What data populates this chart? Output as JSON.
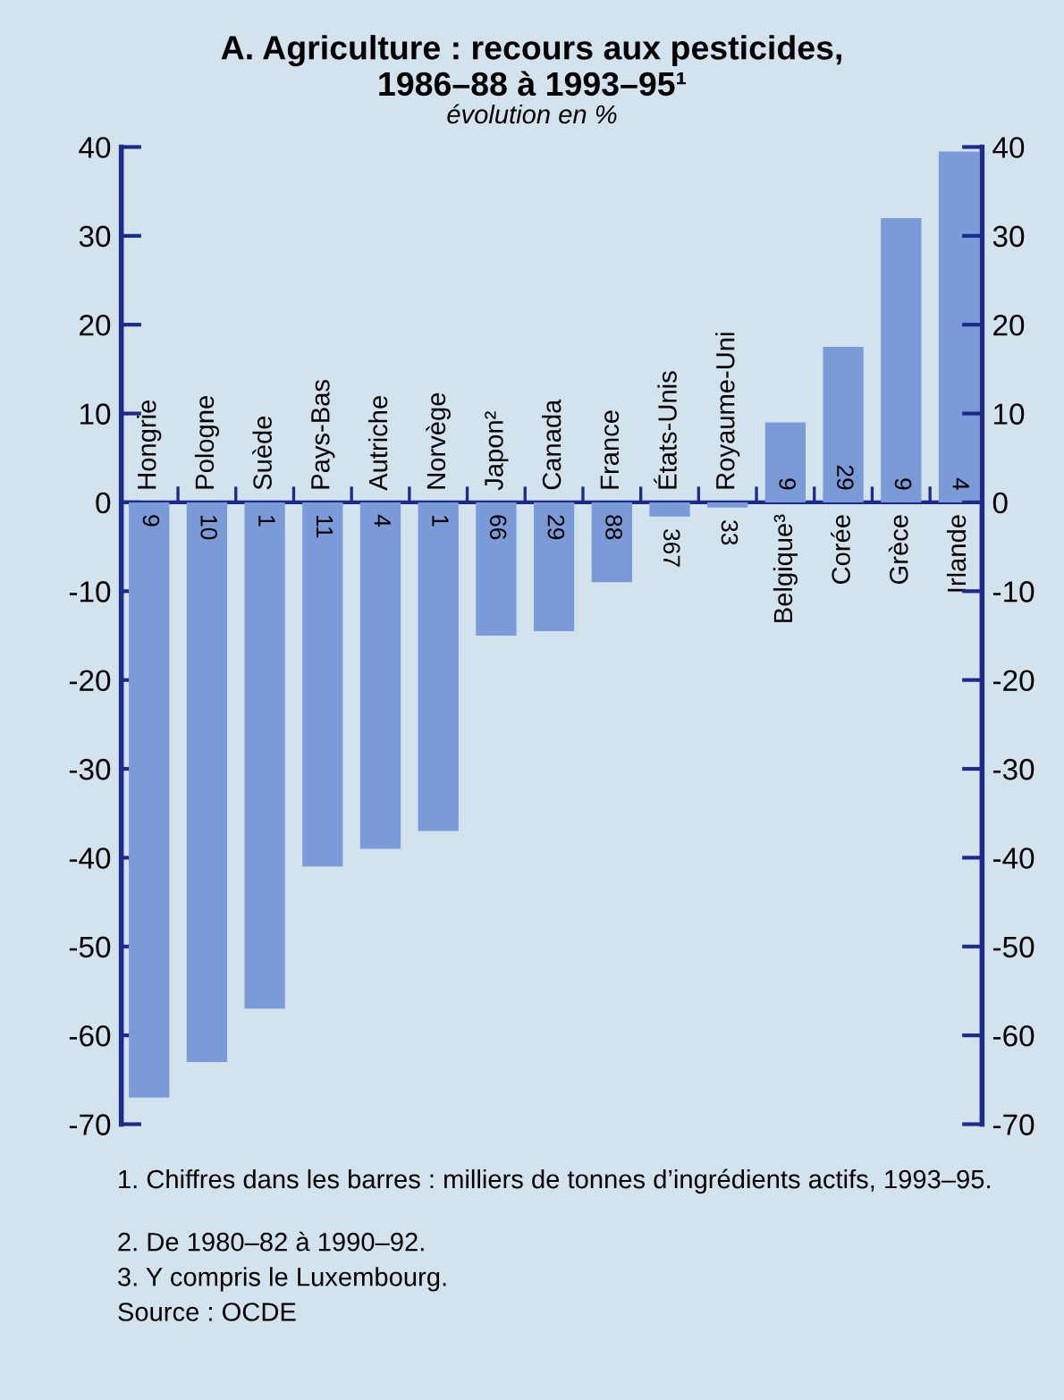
{
  "chart_data": {
    "type": "bar",
    "title": "A. Agriculture : recours aux pesticides,\n1986–88 à 1993–95¹",
    "subtitle": "évolution en %",
    "categories": [
      "Hongrie",
      "Pologne",
      "Suède",
      "Pays-Bas",
      "Autriche",
      "Norvège",
      "Japon²",
      "Canada",
      "France",
      "États-Unis",
      "Royaume-Uni",
      "Belgique³",
      "Corée",
      "Grèce",
      "Irlande"
    ],
    "values": [
      -67,
      -63,
      -57,
      -41,
      -39,
      -37,
      -15,
      -14.5,
      -9,
      -1.6,
      -0.6,
      9,
      17.5,
      32,
      39.5
    ],
    "color": "#7b9ad8",
    "ylim": [
      -70,
      40
    ],
    "yticks": [
      -70,
      -60,
      -50,
      -40,
      -30,
      -20,
      -10,
      0,
      10,
      20,
      30,
      40
    ],
    "y2lim": [
      -70,
      40
    ],
    "y2ticks": [
      -70,
      -60,
      -50,
      -40,
      -30,
      -20,
      -10,
      0,
      10,
      20,
      30,
      40
    ],
    "grid": false,
    "legend": false,
    "annotations": [
      "9",
      "10",
      "1",
      "11",
      "4",
      "1",
      "66",
      "29",
      "88",
      "367",
      "33",
      "9",
      "29",
      "9",
      "4",
      "1. Chiffres dans les barres : milliers de tonnes d’ingrédients actifs, 1993–95.",
      "2. De 1980–82 à 1990–92.",
      "3. Y compris le Luxembourg.",
      "Source : OCDE"
    ]
  }
}
